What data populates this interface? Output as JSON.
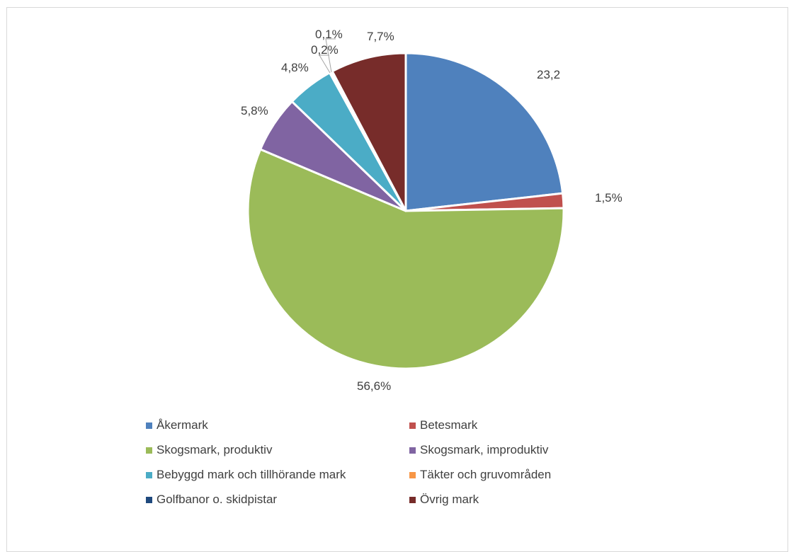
{
  "chart_data": {
    "type": "pie",
    "title": "",
    "categories": [
      "Åkermark",
      "Betesmark",
      "Skogsmark, produktiv",
      "Skogsmark, improduktiv",
      "Bebyggd mark och tillhörande mark",
      "Täkter och gruvområden",
      "Golfbanor o. skidpistar",
      "Övrig mark"
    ],
    "values": [
      23.2,
      1.5,
      56.6,
      5.8,
      4.8,
      0.2,
      0.1,
      7.7
    ],
    "data_labels": [
      "23,2",
      "1,5%",
      "56,6%",
      "5,8%",
      "4,8%",
      "0,2%",
      "0,1%",
      "7,7%"
    ],
    "colors": [
      "#4f81bd",
      "#c0504d",
      "#9bbb59",
      "#8064a2",
      "#4bacc6",
      "#f79646",
      "#1f497d",
      "#772c2a"
    ],
    "legend_position": "bottom"
  }
}
